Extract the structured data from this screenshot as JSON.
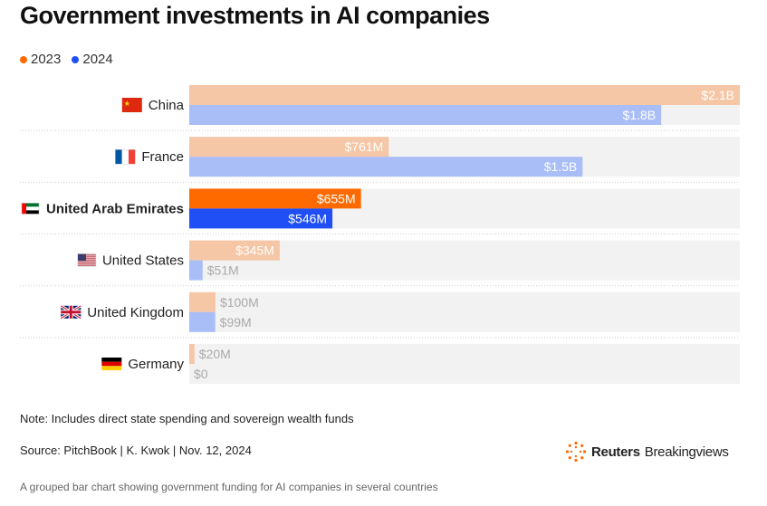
{
  "title": "Government investments in AI companies",
  "legend": [
    {
      "label": "2023",
      "color": "#ff6a00"
    },
    {
      "label": "2024",
      "color": "#1f4ff5"
    }
  ],
  "chart_data": {
    "type": "bar",
    "orientation": "horizontal",
    "unit": "USD",
    "categories": [
      "China",
      "France",
      "United Arab Emirates",
      "United States",
      "United Kingdom",
      "Germany"
    ],
    "highlight": "United Arab Emirates",
    "series": [
      {
        "name": "2023",
        "values": [
          2100,
          761,
          655,
          345,
          100,
          20
        ],
        "labels": [
          "$2.1B",
          "$761M",
          "$655M",
          "$345M",
          "$100M",
          "$20M"
        ],
        "color": "#ff6a00",
        "muted_color": "#f5c7a6"
      },
      {
        "name": "2024",
        "values": [
          1800,
          1500,
          546,
          51,
          99,
          0
        ],
        "labels": [
          "$1.8B",
          "$1.5B",
          "$546M",
          "$51M",
          "$99M",
          "$0"
        ],
        "color": "#1f4ff5",
        "muted_color": "#a9bdf7"
      }
    ],
    "value_units": "millions of dollars",
    "xlim": [
      0,
      2100
    ],
    "track_color": "#f2f2f2",
    "grid": false
  },
  "flags": [
    "china-flag",
    "france-flag",
    "uae-flag",
    "us-flag",
    "uk-flag",
    "germany-flag"
  ],
  "note": "Note: Includes direct state spending and sovereign wealth funds",
  "source": "Source: PitchBook | K. Kwok | Nov. 12, 2024",
  "brand": {
    "name": "Reuters",
    "product": "Breakingviews",
    "icon": "reuters-logo-icon"
  },
  "caption": "A grouped bar chart showing government funding for AI companies in several countries"
}
